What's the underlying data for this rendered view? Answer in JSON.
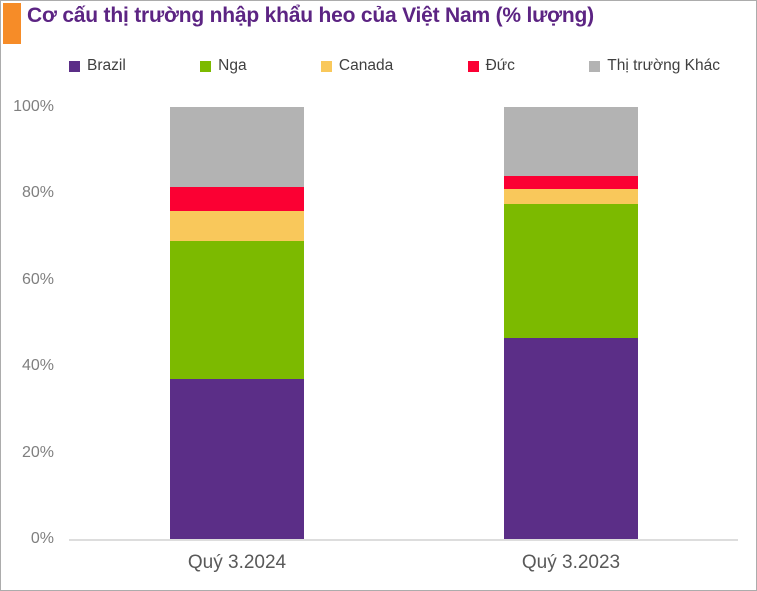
{
  "header": {
    "title": "Cơ cấu thị trường nhập khẩu heo của Việt Nam (% lượng)",
    "title_color": "#5C2483",
    "accent_color": "#F68C28"
  },
  "chart_data": {
    "type": "bar",
    "stacked": true,
    "orientation": "vertical",
    "title": "Cơ cấu thị trường nhập khẩu heo của Việt Nam (% lượng)",
    "categories": [
      "Quý 3.2024",
      "Quý 3.2023"
    ],
    "series": [
      {
        "name": "Brazil",
        "color": "#5B2E87",
        "values": [
          37.0,
          46.5
        ]
      },
      {
        "name": "Nga",
        "color": "#7CBA00",
        "values": [
          32.0,
          31.0
        ]
      },
      {
        "name": "Canada",
        "color": "#F9C85B",
        "values": [
          7.0,
          3.5
        ]
      },
      {
        "name": "Đức",
        "color": "#FB0033",
        "values": [
          5.5,
          3.0
        ]
      },
      {
        "name": "Thị trường Khác",
        "color": "#B3B3B3",
        "values": [
          18.5,
          16.0
        ]
      }
    ],
    "xlabel": "",
    "ylabel": "",
    "ylim": [
      0,
      100
    ],
    "ytick_values": [
      0,
      20,
      40,
      60,
      80,
      100
    ],
    "ytick_labels": [
      "0%",
      "20%",
      "40%",
      "60%",
      "80%",
      "100%"
    ],
    "grid": false,
    "legend_position": "top",
    "axis_line_color": "#DDDDDD"
  }
}
